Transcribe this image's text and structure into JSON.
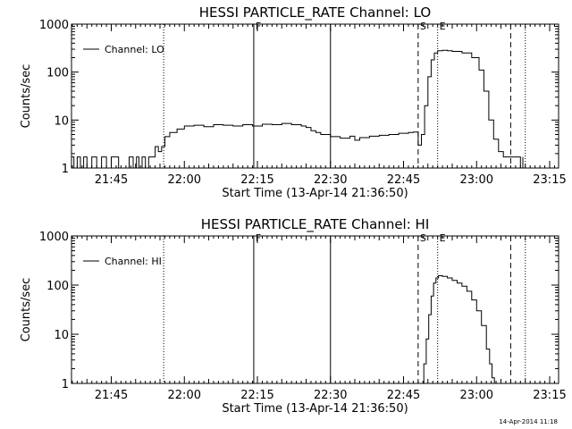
{
  "footer": {
    "timestamp": "14-Apr-2014 11:18"
  },
  "chart_data": [
    {
      "type": "line",
      "title": "HESSI PARTICLE_RATE Channel: LO",
      "xlabel": "Start Time (13-Apr-14 21:36:50)",
      "ylabel": "Counts/sec",
      "yscale": "log",
      "ylim": [
        1,
        1000
      ],
      "xlim": [
        "21:36:50",
        "23:16:50"
      ],
      "xticks": [
        "21:45",
        "22:00",
        "22:15",
        "22:30",
        "22:45",
        "23:00",
        "23:15"
      ],
      "yticks": [
        "1",
        "10",
        "100",
        "1000"
      ],
      "legend": {
        "label": "Channel: LO",
        "position": "top-left"
      },
      "markers": [
        {
          "time": "21:55:45",
          "style": "dotted",
          "label": ""
        },
        {
          "time": "22:14:15",
          "style": "solid",
          "label": "F"
        },
        {
          "time": "22:30:00",
          "style": "solid",
          "label": ""
        },
        {
          "time": "22:48:00",
          "style": "dashed",
          "label": "S"
        },
        {
          "time": "22:52:00",
          "style": "dotted",
          "label": "E"
        },
        {
          "time": "23:07:00",
          "style": "dashed",
          "label": ""
        },
        {
          "time": "23:10:00",
          "style": "dotted",
          "label": ""
        }
      ],
      "series": [
        {
          "name": "Channel: LO",
          "x": [
            "21:36:50",
            "21:37:20",
            "21:38:00",
            "21:38:40",
            "21:39:20",
            "21:40:00",
            "21:41:00",
            "21:42:00",
            "21:43:00",
            "21:44:00",
            "21:44:30",
            "21:45:00",
            "21:46:30",
            "21:47:30",
            "21:48:00",
            "21:48:40",
            "21:49:30",
            "21:50:10",
            "21:50:40",
            "21:51:20",
            "21:52:00",
            "21:52:40",
            "21:53:20",
            "21:54:00",
            "21:54:40",
            "21:55:20",
            "21:56:00",
            "21:57:00",
            "21:58:30",
            "22:00:00",
            "22:02:00",
            "22:04:00",
            "22:06:00",
            "22:08:00",
            "22:10:00",
            "22:12:00",
            "22:14:00",
            "22:16:00",
            "22:18:00",
            "22:20:00",
            "22:22:00",
            "22:24:00",
            "22:25:00",
            "22:26:00",
            "22:27:00",
            "22:28:00",
            "22:30:00",
            "22:32:00",
            "22:34:00",
            "22:35:00",
            "22:36:00",
            "22:38:00",
            "22:40:00",
            "22:42:00",
            "22:44:00",
            "22:46:00",
            "22:47:00",
            "22:48:00",
            "22:48:40",
            "22:49:20",
            "22:50:00",
            "22:50:40",
            "22:51:20",
            "22:52:00",
            "22:53:00",
            "22:54:00",
            "22:55:00",
            "22:57:00",
            "22:59:00",
            "23:00:30",
            "23:01:30",
            "23:02:30",
            "23:03:30",
            "23:04:30",
            "23:05:30",
            "23:06:30",
            "23:07:30",
            "23:08:30",
            "23:09:00",
            "23:09:30"
          ],
          "values": [
            1.7,
            1.0,
            1.7,
            1.0,
            1.7,
            1.0,
            1.7,
            1.0,
            1.7,
            1.0,
            1.0,
            1.7,
            1.0,
            1.0,
            1.0,
            1.7,
            1.0,
            1.7,
            1.0,
            1.7,
            1.0,
            1.7,
            1.7,
            2.8,
            2.2,
            2.8,
            4.5,
            5.5,
            6.5,
            7.5,
            7.8,
            7.3,
            8.0,
            7.8,
            7.5,
            8.0,
            7.5,
            8.2,
            8.0,
            8.5,
            8.0,
            7.5,
            7.0,
            6.0,
            5.5,
            5.0,
            4.5,
            4.2,
            4.6,
            3.8,
            4.3,
            4.6,
            4.8,
            5.0,
            5.3,
            5.5,
            5.6,
            3.0,
            5.0,
            20,
            80,
            180,
            250,
            280,
            285,
            280,
            270,
            250,
            200,
            110,
            40,
            10,
            4,
            2.2,
            1.7,
            1.7,
            1.7,
            1.7,
            1.0,
            1.7
          ]
        }
      ]
    },
    {
      "type": "line",
      "title": "HESSI PARTICLE_RATE Channel: HI",
      "xlabel": "Start Time (13-Apr-14 21:36:50)",
      "ylabel": "Counts/sec",
      "yscale": "log",
      "ylim": [
        1,
        1000
      ],
      "xlim": [
        "21:36:50",
        "23:16:50"
      ],
      "xticks": [
        "21:45",
        "22:00",
        "22:15",
        "22:30",
        "22:45",
        "23:00",
        "23:15"
      ],
      "yticks": [
        "1",
        "10",
        "100",
        "1000"
      ],
      "legend": {
        "label": "Channel: HI",
        "position": "top-left"
      },
      "markers": [
        {
          "time": "21:55:45",
          "style": "dotted",
          "label": ""
        },
        {
          "time": "22:14:15",
          "style": "solid",
          "label": "F"
        },
        {
          "time": "22:30:00",
          "style": "solid",
          "label": ""
        },
        {
          "time": "22:48:00",
          "style": "dashed",
          "label": "S"
        },
        {
          "time": "22:52:00",
          "style": "dotted",
          "label": "E"
        },
        {
          "time": "23:07:00",
          "style": "dashed",
          "label": ""
        },
        {
          "time": "23:10:00",
          "style": "dotted",
          "label": ""
        }
      ],
      "series": [
        {
          "name": "Channel: HI",
          "x": [
            "22:48:40",
            "22:49:10",
            "22:49:40",
            "22:50:10",
            "22:50:40",
            "22:51:10",
            "22:51:40",
            "22:52:10",
            "22:53:00",
            "22:54:00",
            "22:55:00",
            "22:56:00",
            "22:57:00",
            "22:58:00",
            "22:59:00",
            "23:00:00",
            "23:01:00",
            "23:02:00",
            "23:02:40",
            "23:03:10",
            "23:03:40"
          ],
          "values": [
            1.0,
            2.5,
            8,
            25,
            60,
            110,
            140,
            155,
            150,
            140,
            125,
            110,
            95,
            75,
            50,
            30,
            15,
            5,
            2.5,
            1.3,
            1.0
          ]
        }
      ]
    }
  ]
}
